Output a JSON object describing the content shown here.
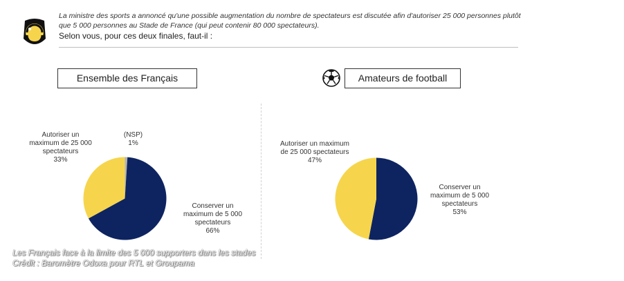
{
  "colors": {
    "navy": "#0e2461",
    "yellow": "#f6d54c",
    "grey": "#b4b4b4"
  },
  "icons": {
    "logo": "whistle-badge-icon",
    "ball": "soccer-ball-icon"
  },
  "header": {
    "intro": "La ministre des sports a annoncé qu'une possible augmentation du nombre de spectateurs est discutée afin d'autoriser 25 000 personnes plutôt que 5 000 personnes au Stade de France (qui peut contenir 80 000 spectateurs).",
    "question": "Selon vous, pour ces deux finales, faut-il :"
  },
  "chart_data": [
    {
      "type": "pie",
      "title": "Ensemble des Français",
      "slices": [
        {
          "label_lines": [
            "(NSP)"
          ],
          "value": 1,
          "value_label": "1%",
          "color": "#b4b4b4"
        },
        {
          "label_lines": [
            "Conserver un",
            "maximum de 5 000",
            "spectateurs"
          ],
          "value": 66,
          "value_label": "66%",
          "color": "#0e2461"
        },
        {
          "label_lines": [
            "Autoriser un",
            "maximum de 25 000",
            "spectateurs"
          ],
          "value": 33,
          "value_label": "33%",
          "color": "#f6d54c"
        }
      ]
    },
    {
      "type": "pie",
      "title": "Amateurs de football",
      "slices": [
        {
          "label_lines": [
            "Conserver un",
            "maximum de 5 000",
            "spectateurs"
          ],
          "value": 53,
          "value_label": "53%",
          "color": "#0e2461"
        },
        {
          "label_lines": [
            "Autoriser un maximum",
            "de 25 000 spectateurs"
          ],
          "value": 47,
          "value_label": "47%",
          "color": "#f6d54c"
        }
      ]
    }
  ],
  "caption": {
    "line1": "Les Français face à la limite des 5 000 supporters dans les stades",
    "line2": "Crédit : Baromètre Odoxa pour RTL et Groupama"
  }
}
